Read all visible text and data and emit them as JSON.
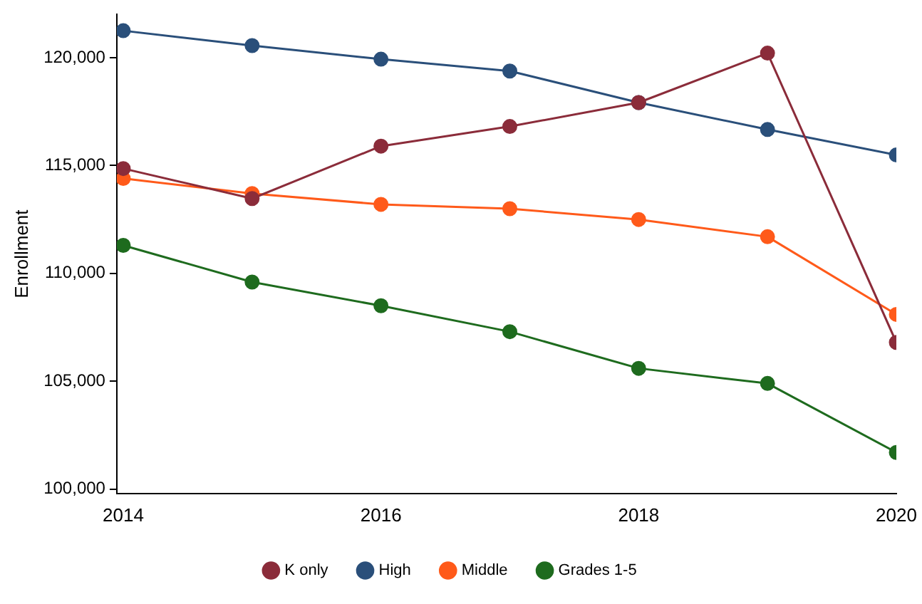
{
  "chart_data": {
    "type": "line",
    "ylabel": "Enrollment",
    "x": [
      2014,
      2015,
      2016,
      2017,
      2018,
      2019,
      2020
    ],
    "xlim": [
      2013.95,
      2020
    ],
    "xticks": [
      {
        "value": 2014,
        "label": "2014"
      },
      {
        "value": 2016,
        "label": "2016"
      },
      {
        "value": 2018,
        "label": "2018"
      },
      {
        "value": 2020,
        "label": "2020"
      }
    ],
    "ylim": [
      99800,
      122000
    ],
    "yticks": [
      {
        "value": 100000,
        "label": "100,000"
      },
      {
        "value": 105000,
        "label": "105,000"
      },
      {
        "value": 110000,
        "label": "110,000"
      },
      {
        "value": 115000,
        "label": "115,000"
      },
      {
        "value": 120000,
        "label": "120,000"
      }
    ],
    "grid": false,
    "legend": "bottom",
    "marker": "circle",
    "line_style": "solid",
    "series": [
      {
        "name": "Grades 1-5",
        "color": "#1e6b1e",
        "values": [
          111300,
          109600,
          108500,
          107300,
          105600,
          104900,
          101700
        ]
      },
      {
        "name": "Middle",
        "color": "#ff5a1a",
        "values": [
          114400,
          113700,
          113200,
          113000,
          112500,
          111700,
          108100
        ]
      },
      {
        "name": "High",
        "color": "#2a4f7a",
        "values": [
          121250,
          120560,
          119930,
          119380,
          117920,
          116670,
          115490
        ]
      },
      {
        "name": "K only",
        "color": "#8b2c3a",
        "values": [
          114860,
          113470,
          115900,
          116810,
          117920,
          120210,
          106800
        ]
      }
    ]
  }
}
